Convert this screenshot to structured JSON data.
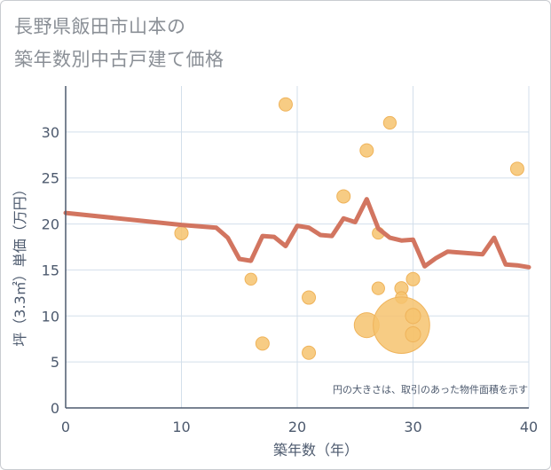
{
  "title": {
    "line1": "長野県飯田市山本の",
    "line2": "築年数別中古戸建て価格"
  },
  "note": "円の大きさは、取引のあった物件面積を示す",
  "colors": {
    "line": "#d27560",
    "bubble_fill": "#f6c36f",
    "bubble_stroke": "#efb35a",
    "grid": "#d3dfeb",
    "axis": "#4d5a6e"
  },
  "chart_data": {
    "type": "scatter",
    "xlabel": "築年数（年）",
    "ylabel": "坪（3.3㎡）単価（万円）",
    "xlim": [
      0,
      40
    ],
    "ylim": [
      0,
      35
    ],
    "xticks": [
      "0",
      "10",
      "20",
      "30",
      "40"
    ],
    "yticks": [
      "0",
      "5",
      "10",
      "15",
      "20",
      "25",
      "30"
    ],
    "grid": true,
    "line": {
      "x": [
        0,
        10,
        13,
        14,
        15,
        16,
        17,
        18,
        19,
        20,
        21,
        22,
        23,
        24,
        25,
        26,
        27,
        28,
        29,
        30,
        31,
        32,
        33,
        34,
        35,
        36,
        37,
        38,
        39,
        40
      ],
      "y": [
        21.2,
        19.9,
        19.6,
        18.5,
        16.2,
        16.0,
        18.7,
        18.6,
        17.6,
        19.8,
        19.6,
        18.8,
        18.7,
        20.6,
        20.2,
        22.7,
        19.5,
        18.5,
        18.2,
        18.3,
        15.4,
        16.3,
        17.0,
        16.9,
        16.8,
        16.7,
        18.5,
        15.6,
        15.5,
        15.3
      ]
    },
    "bubbles": [
      {
        "x": 10,
        "y": 19,
        "size": 1
      },
      {
        "x": 16,
        "y": 14,
        "size": 0.8
      },
      {
        "x": 17,
        "y": 7,
        "size": 1
      },
      {
        "x": 19,
        "y": 33,
        "size": 1
      },
      {
        "x": 21,
        "y": 12,
        "size": 1
      },
      {
        "x": 21,
        "y": 6,
        "size": 1
      },
      {
        "x": 24,
        "y": 23,
        "size": 1
      },
      {
        "x": 26,
        "y": 28,
        "size": 1
      },
      {
        "x": 26,
        "y": 9,
        "size": 3.5
      },
      {
        "x": 27,
        "y": 19,
        "size": 0.8
      },
      {
        "x": 27,
        "y": 13,
        "size": 0.9
      },
      {
        "x": 28,
        "y": 31,
        "size": 0.9
      },
      {
        "x": 29,
        "y": 13,
        "size": 1
      },
      {
        "x": 29,
        "y": 12,
        "size": 0.8
      },
      {
        "x": 29,
        "y": 9,
        "size": 18
      },
      {
        "x": 30,
        "y": 14,
        "size": 1
      },
      {
        "x": 30,
        "y": 10,
        "size": 1.3
      },
      {
        "x": 30,
        "y": 8,
        "size": 1.3
      },
      {
        "x": 39,
        "y": 26,
        "size": 1
      }
    ]
  }
}
